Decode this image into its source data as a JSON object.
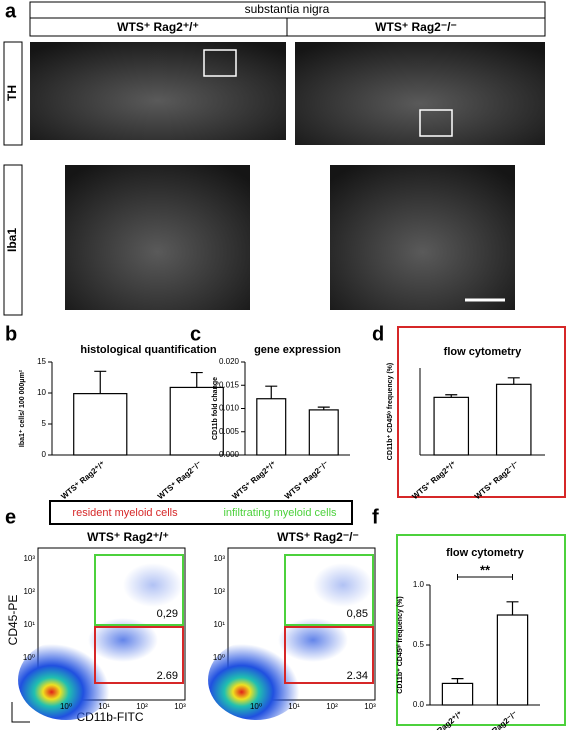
{
  "figure": {
    "panel_labels": [
      "a",
      "b",
      "c",
      "d",
      "e",
      "f"
    ],
    "a": {
      "header": "substantia nigra",
      "groups": [
        "WTS⁺ Rag2⁺/⁺",
        "WTS⁺ Rag2⁻/⁻"
      ],
      "rows": [
        "TH",
        "Iba1"
      ]
    },
    "e": {
      "legend": [
        "resident myeloid cells",
        "infiltrating myeloid cells"
      ],
      "plots": [
        {
          "title": "WTS⁺ Rag2⁺/⁺",
          "gates": [
            "0,29",
            "2.69"
          ]
        },
        {
          "title": "WTS⁺ Rag2⁻/⁻",
          "gates": [
            "0,85",
            "2.34"
          ]
        }
      ],
      "y_label": "CD45-PE",
      "x_label": "CD11b-FITC",
      "ticks": [
        "10⁰",
        "10¹",
        "10²",
        "10³"
      ]
    }
  },
  "chart_data": [
    {
      "type": "bar",
      "title": "histological quantification",
      "y_label": "Iba1⁺ cells/ 100 000μm²",
      "categories": [
        "WTS⁺ Rag2⁺/⁺",
        "WTS⁺ Rag2⁻/⁻"
      ],
      "values": [
        9.9,
        10.9
      ],
      "errors": [
        3.6,
        2.4
      ],
      "ylim": [
        0,
        15
      ],
      "yticks": [
        0,
        5,
        10,
        15
      ],
      "color": "#ffffff"
    },
    {
      "type": "bar",
      "title": "gene expression",
      "y_label": "CD11b fold change",
      "categories": [
        "WTS⁺ Rag2⁺/⁺",
        "WTS⁺ Rag2⁻/⁻"
      ],
      "values": [
        0.0121,
        0.0097
      ],
      "errors": [
        0.0027,
        0.0006
      ],
      "ylim": [
        0,
        0.02
      ],
      "yticks": [
        {
          "value": 0,
          "label": "0.000"
        },
        {
          "value": 0.005,
          "label": "0.005"
        },
        {
          "value": 0.01,
          "label": "0.010"
        },
        {
          "value": 0.015,
          "label": "0.015"
        },
        {
          "value": 0.02,
          "label": "0.020"
        }
      ],
      "color": "#ffffff"
    },
    {
      "type": "bar",
      "title": "flow cytometry",
      "y_label": "CD11b⁺ CD45ˡᵒ frequency (%)",
      "categories": [
        "WTS⁺ Rag2⁺/⁺",
        "WTS⁺ Rag2⁻/⁻"
      ],
      "values": [
        2.65,
        3.25
      ],
      "errors": [
        0.12,
        0.3
      ],
      "ylim": [
        0,
        4
      ],
      "color": "#ffffff",
      "frame_color": "#d62728"
    },
    {
      "type": "bar",
      "title": "flow cytometry",
      "y_label": "CD11b⁺ CD45ʰⁱ frequency (%)",
      "categories": [
        "WTS⁺ Rag2⁺/⁺",
        "WTS⁺ Rag2⁻/⁻"
      ],
      "values": [
        0.18,
        0.75
      ],
      "errors": [
        0.04,
        0.11
      ],
      "ylim": [
        0,
        1
      ],
      "yticks": [
        {
          "value": 0,
          "label": "0.0"
        },
        {
          "value": 0.5,
          "label": "0.5"
        },
        {
          "value": 1,
          "label": "1.0"
        }
      ],
      "annotation": "**",
      "color": "#ffffff",
      "frame_color": "#4cd13c"
    }
  ]
}
